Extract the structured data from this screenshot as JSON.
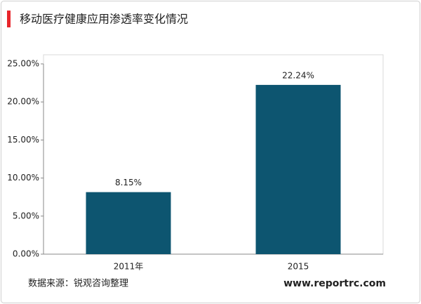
{
  "chart_data": {
    "type": "bar",
    "title": "移动医疗健康应用渗透率变化情况",
    "categories": [
      "2011年",
      "2015"
    ],
    "values": [
      8.15,
      22.24
    ],
    "value_labels": [
      "8.15%",
      "22.24%"
    ],
    "color": "#0d5570",
    "ylim": [
      0,
      25
    ],
    "yticks": [
      {
        "value": 0,
        "label": "0.00%"
      },
      {
        "value": 5,
        "label": "5.00%"
      },
      {
        "value": 10,
        "label": "10.00%"
      },
      {
        "value": 15,
        "label": "15.00%"
      },
      {
        "value": 20,
        "label": "20.00%"
      },
      {
        "value": 25,
        "label": "25.00%"
      }
    ],
    "grid": false,
    "source": "数据来源：锐观咨询整理",
    "website": "www.reportrc.com"
  }
}
